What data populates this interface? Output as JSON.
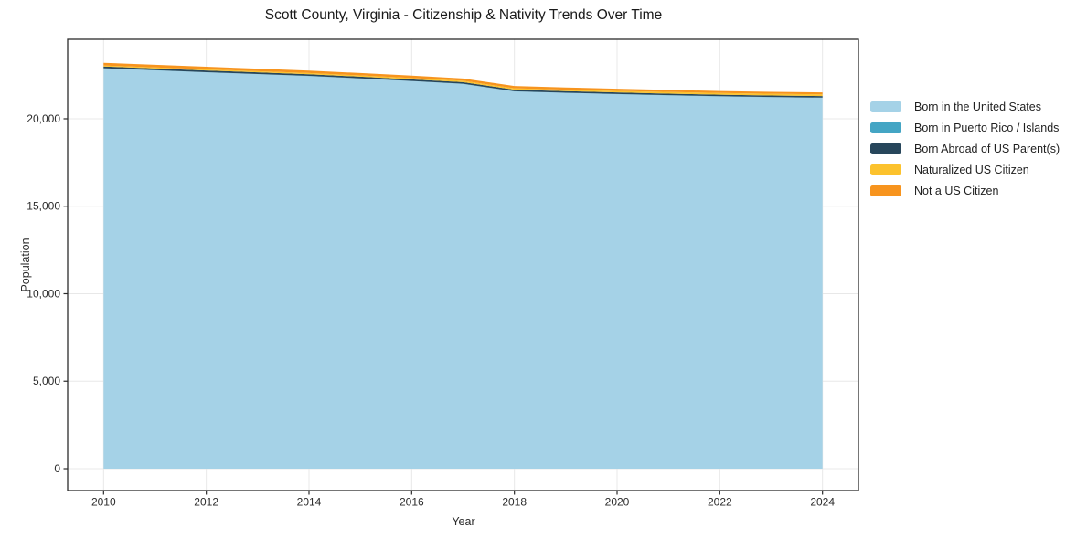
{
  "chart_data": {
    "type": "area",
    "stacked": true,
    "title": "Scott County, Virginia - Citizenship & Nativity Trends Over Time",
    "xlabel": "Year",
    "ylabel": "Population",
    "x": [
      2010,
      2011,
      2012,
      2013,
      2014,
      2015,
      2016,
      2017,
      2018,
      2019,
      2020,
      2021,
      2022,
      2023,
      2024
    ],
    "series": [
      {
        "name": "Born in the United States",
        "color": "#a5d2e7",
        "values": [
          22880,
          22770,
          22655,
          22550,
          22440,
          22300,
          22150,
          21990,
          21560,
          21480,
          21405,
          21340,
          21280,
          21235,
          21200
        ]
      },
      {
        "name": "Born in Puerto Rico / Islands",
        "color": "#44a5c4",
        "values": [
          10,
          10,
          10,
          10,
          10,
          10,
          10,
          10,
          10,
          10,
          10,
          10,
          10,
          10,
          10
        ]
      },
      {
        "name": "Born Abroad of US Parent(s)",
        "color": "#27465b",
        "values": [
          100,
          99,
          98,
          97,
          96,
          95,
          94,
          92,
          91,
          90,
          89,
          88,
          87,
          86,
          85
        ]
      },
      {
        "name": "Naturalized US Citizen",
        "color": "#fcc22d",
        "values": [
          55,
          58,
          62,
          65,
          68,
          72,
          75,
          78,
          82,
          85,
          88,
          92,
          95,
          98,
          102
        ]
      },
      {
        "name": "Not a US Citizen",
        "color": "#f7941e",
        "values": [
          155,
          152,
          148,
          145,
          142,
          138,
          135,
          132,
          128,
          125,
          122,
          118,
          115,
          112,
          110
        ]
      }
    ],
    "xticks": {
      "values": [
        2010,
        2012,
        2014,
        2016,
        2018,
        2020,
        2022,
        2024
      ],
      "labels": [
        "2010",
        "2012",
        "2014",
        "2016",
        "2018",
        "2020",
        "2022",
        "2024"
      ]
    },
    "yticks": {
      "values": [
        0,
        5000,
        10000,
        15000,
        20000
      ],
      "labels": [
        "0",
        "5,000",
        "10,000",
        "15,000",
        "20,000"
      ]
    },
    "xlim": [
      2009.3,
      2024.7
    ],
    "ylim": [
      -1253,
      24542
    ],
    "grid": true,
    "legend_position": "right-outside",
    "colors": {
      "background": "#ffffff",
      "grid": "#e8e8e8",
      "spine": "#2b2b2b",
      "tick_label": "#2b2b2b",
      "title": "#1a1a1a"
    }
  }
}
